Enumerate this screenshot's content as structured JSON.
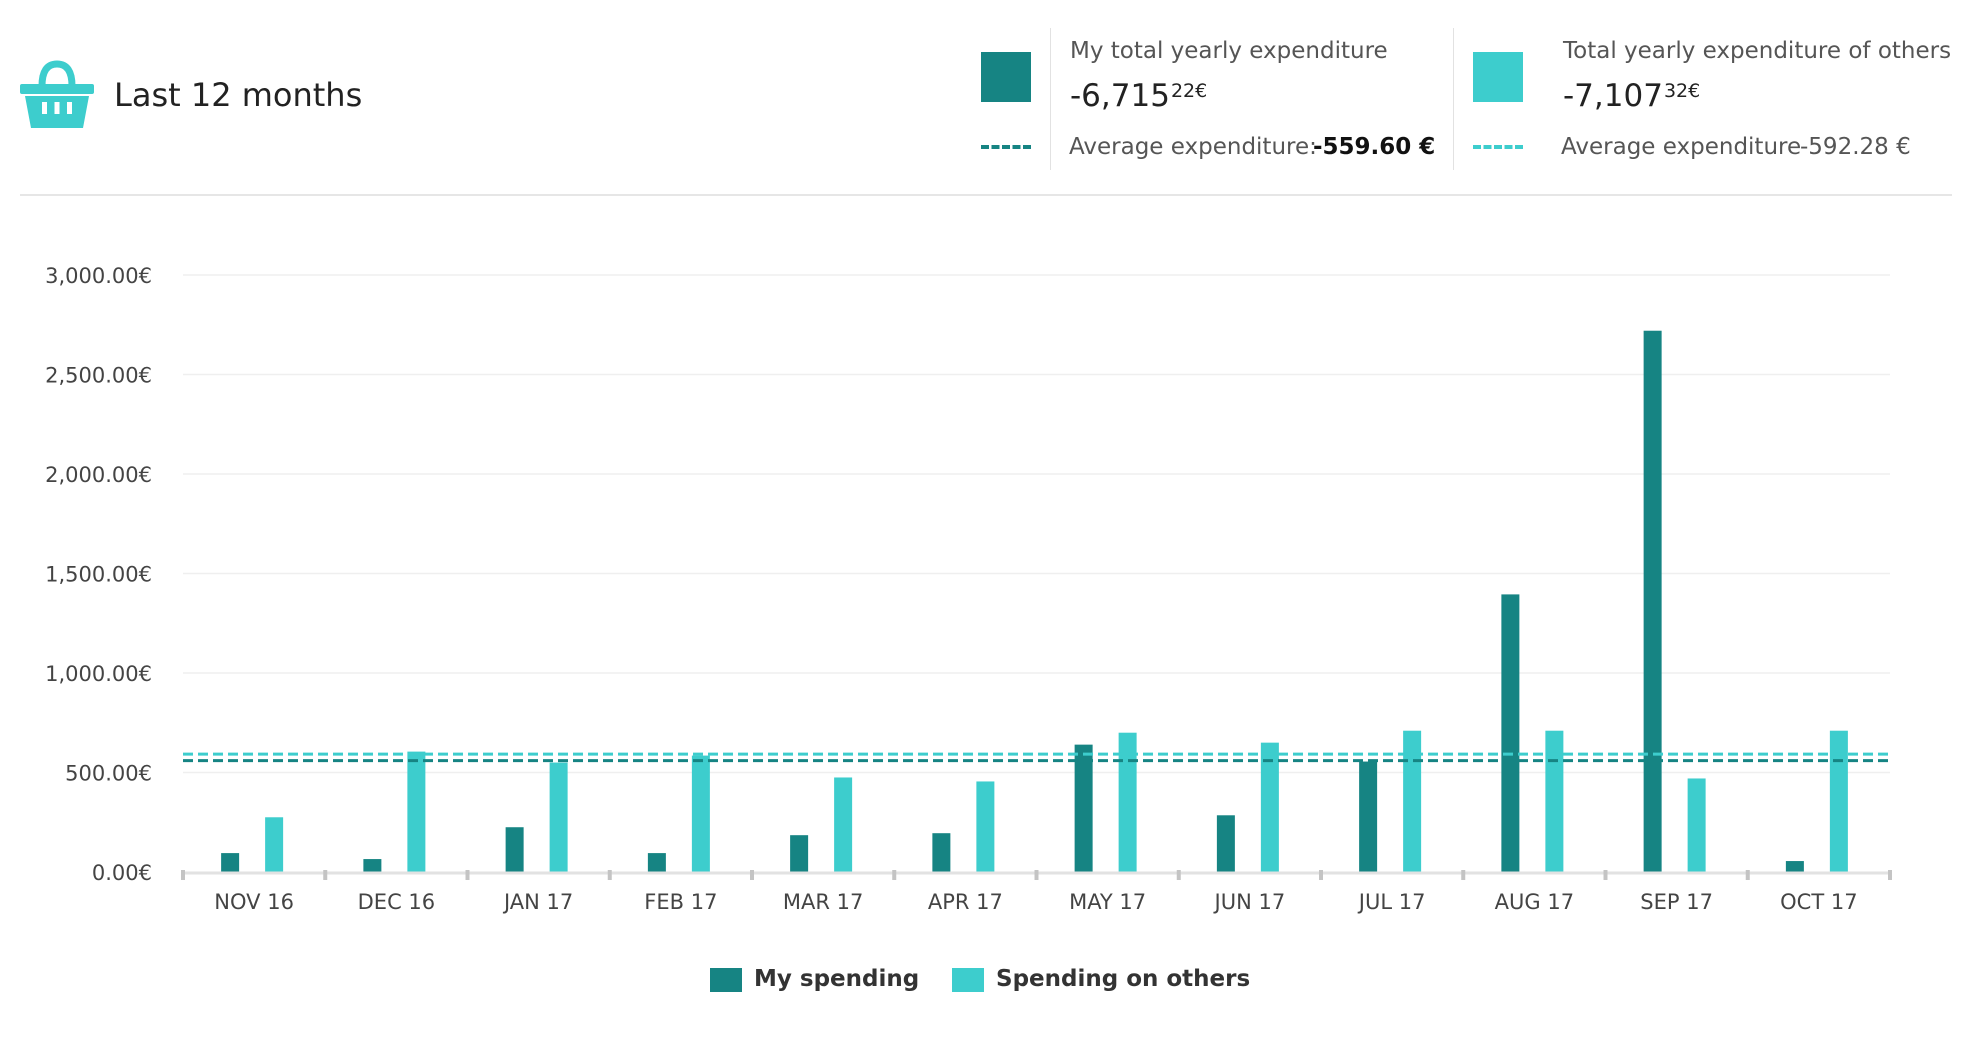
{
  "header": {
    "title": "Last 12 months",
    "icon": "basket-icon"
  },
  "summary": {
    "mine": {
      "label": "My total yearly expenditure",
      "amount_main": "-6,715",
      "amount_cents": "22€",
      "avg_label": "Average expenditure:",
      "avg_value": "-559.60 €",
      "color": "#168483"
    },
    "others": {
      "label": "Total yearly expenditure of others",
      "amount_main": "-7,107",
      "amount_cents": "32€",
      "avg_label": "Average expenditure",
      "avg_value": "-592.28 €",
      "color": "#3dcdcd"
    }
  },
  "chart_data": {
    "type": "bar",
    "categories": [
      "NOV 16",
      "DEC 16",
      "JAN 17",
      "FEB 17",
      "MAR 17",
      "APR 17",
      "MAY 17",
      "JUN 17",
      "JUL 17",
      "AUG 17",
      "SEP 17",
      "OCT 17"
    ],
    "series": [
      {
        "name": "My spending",
        "color": "#168483",
        "values": [
          95,
          65,
          225,
          95,
          185,
          195,
          640,
          285,
          555,
          1395,
          2720,
          55
        ]
      },
      {
        "name": "Spending on others",
        "color": "#3dcdcd",
        "values": [
          275,
          605,
          550,
          585,
          475,
          455,
          700,
          650,
          710,
          710,
          470,
          710
        ]
      }
    ],
    "ylim": [
      0,
      3000
    ],
    "yticks": [
      0,
      500,
      1000,
      1500,
      2000,
      2500,
      3000
    ],
    "ytick_labels": [
      "0.00€",
      "500.00€",
      "1,000.00€",
      "1,500.00€",
      "2,000.00€",
      "2,500.00€",
      "3,000.00€"
    ],
    "reference_lines": [
      {
        "name": "Average expenditure (mine)",
        "value": 559.6,
        "color": "#168483",
        "style": "dashed"
      },
      {
        "name": "Average expenditure (others)",
        "value": 592.28,
        "color": "#3dcdcd",
        "style": "dashed"
      }
    ],
    "grid": true,
    "legend_position": "bottom-center"
  },
  "legend": {
    "mine_label": "My spending",
    "others_label": "Spending on others"
  }
}
